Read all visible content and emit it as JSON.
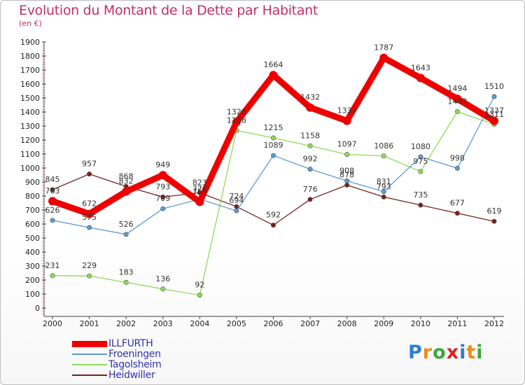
{
  "chart_data": {
    "type": "line",
    "title": "Evolution du Montant de la Dette par Habitant",
    "subtitle": "(en €)",
    "categories": [
      "2000",
      "2001",
      "2002",
      "2003",
      "2004",
      "2005",
      "2006",
      "2007",
      "2008",
      "2009",
      "2010",
      "2011",
      "2012"
    ],
    "ylim": [
      0,
      1900
    ],
    "yticks": [
      0,
      100,
      200,
      300,
      400,
      500,
      600,
      700,
      800,
      900,
      1000,
      1100,
      1200,
      1300,
      1400,
      1500,
      1600,
      1700,
      1800,
      1900
    ],
    "grid": false,
    "legend_position": "bottom-left",
    "series": [
      {
        "name": "Heidwiller",
        "color": "#7a2020",
        "width": 1.3,
        "values": [
          845,
          957,
          868,
          793,
          823,
          724,
          592,
          776,
          878,
          793,
          735,
          677,
          619
        ]
      },
      {
        "name": "Tagolsheim",
        "color": "#8fdb5a",
        "width": 1.3,
        "values": [
          231,
          229,
          183,
          136,
          92,
          1268,
          1215,
          1158,
          1097,
          1086,
          975,
          1403,
          1311
        ]
      },
      {
        "name": "Froeningen",
        "color": "#5b9bd5",
        "width": 1.3,
        "values": [
          626,
          575,
          526,
          709,
          778,
          694,
          1089,
          992,
          908,
          831,
          1080,
          998,
          1510
        ]
      },
      {
        "name": "ILLFURTH",
        "color": "#ee0000",
        "width": 9,
        "values": [
          763,
          672,
          832,
          949,
          758,
          1328,
          1664,
          1432,
          1337,
          1787,
          1643,
          1494,
          1337
        ]
      }
    ]
  },
  "legend": [
    {
      "name": "ILLFURTH",
      "color": "#ee0000",
      "thickness": 9,
      "text_color": "#3333aa"
    },
    {
      "name": "Froeningen",
      "color": "#5b9bd5",
      "thickness": 2,
      "text_color": "#3333aa"
    },
    {
      "name": "Tagolsheim",
      "color": "#8fdb5a",
      "thickness": 2,
      "text_color": "#3333aa"
    },
    {
      "name": "Heidwiller",
      "color": "#7a2020",
      "thickness": 2,
      "text_color": "#3333aa"
    }
  ],
  "logo": {
    "letters": [
      "P",
      "r",
      "o",
      "x",
      "i",
      "t",
      "i"
    ],
    "colors": [
      "#2a7fd4",
      "#f08a1c",
      "#3aa83a",
      "#e02020",
      "#2a7fd4",
      "#f08a1c",
      "#3aa83a"
    ]
  }
}
